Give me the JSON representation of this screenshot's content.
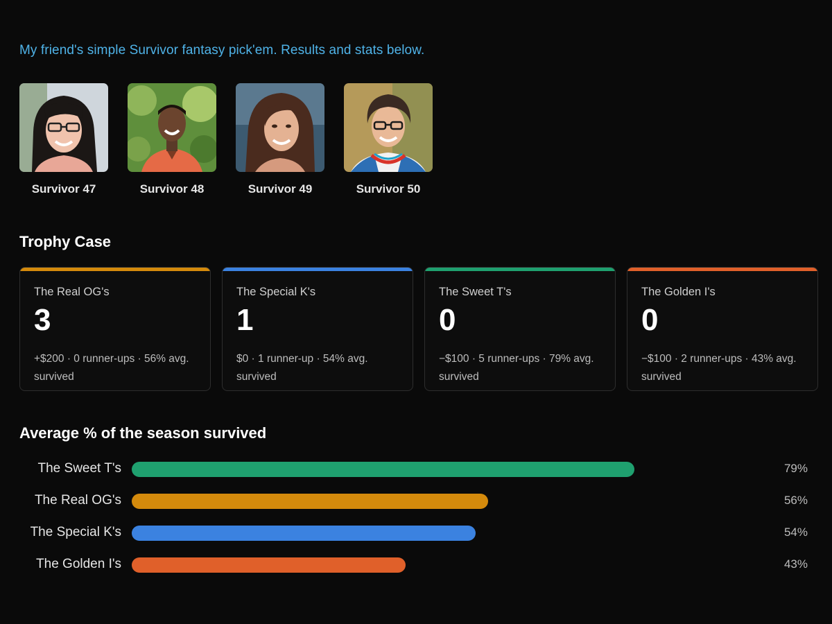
{
  "intro": "My friend's simple Survivor fantasy pick'em. Results and stats below.",
  "seasons": [
    {
      "label": "Survivor 47",
      "icon": "winner-portrait-woman-glasses"
    },
    {
      "label": "Survivor 48",
      "icon": "winner-portrait-man-red-shirt"
    },
    {
      "label": "Survivor 49",
      "icon": "winner-portrait-woman-long-hair"
    },
    {
      "label": "Survivor 50",
      "icon": "winner-portrait-woman-curly-hair"
    }
  ],
  "trophy_case": {
    "title": "Trophy Case",
    "cards": [
      {
        "name": "The Real OG's",
        "count": "3",
        "stats": "+$200 · 0 runner-ups · 56% avg. survived",
        "color": "#d48a0c"
      },
      {
        "name": "The Special K's",
        "count": "1",
        "stats": "$0 · 1 runner-up · 54% avg. survived",
        "color": "#3b82e0"
      },
      {
        "name": "The Sweet T's",
        "count": "0",
        "stats": "−$100 · 5 runner-ups · 79% avg. survived",
        "color": "#1fa06f"
      },
      {
        "name": "The Golden I's",
        "count": "0",
        "stats": "−$100 · 2 runner-ups · 43% avg. survived",
        "color": "#e0602a"
      }
    ]
  },
  "chart_title": "Average % of the season survived",
  "chart_data": {
    "type": "bar",
    "orientation": "horizontal",
    "title": "Average % of the season survived",
    "categories": [
      "The Sweet T's",
      "The Real OG's",
      "The Special K's",
      "The Golden I's"
    ],
    "values": [
      79,
      56,
      54,
      43
    ],
    "value_labels": [
      "79%",
      "56%",
      "54%",
      "43%"
    ],
    "colors": [
      "#1fa06f",
      "#d48a0c",
      "#3b82e0",
      "#e0602a"
    ],
    "xlim": [
      0,
      100
    ],
    "grid": false
  }
}
